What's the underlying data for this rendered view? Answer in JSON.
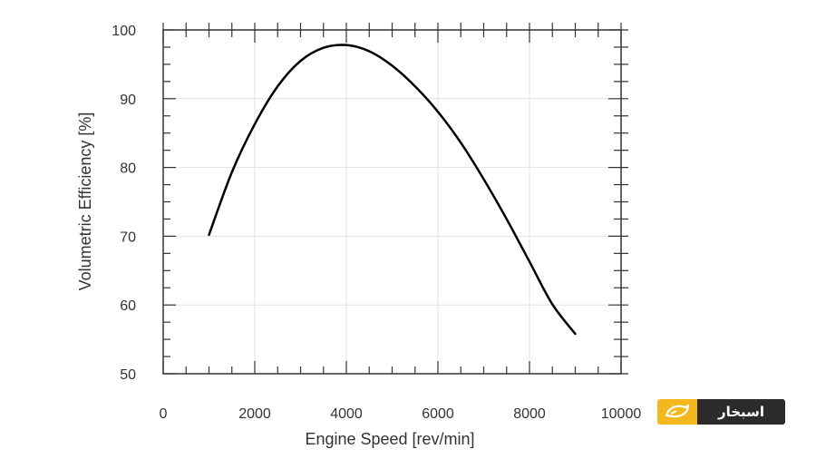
{
  "chart_data": {
    "type": "line",
    "title": "",
    "xlabel": "Engine Speed [rev/min]",
    "ylabel": "Volumetric Efficiency [%]",
    "xlim": [
      0,
      10000
    ],
    "ylim": [
      50,
      100
    ],
    "x_ticks": [
      "0",
      "2000",
      "4000",
      "6000",
      "8000",
      "10000"
    ],
    "y_ticks": [
      "50",
      "60",
      "70",
      "80",
      "90",
      "100"
    ],
    "grid": true,
    "legend": "none",
    "line_color": "#000000",
    "series": [
      {
        "x": [
          1000,
          1500,
          2000,
          2500,
          3000,
          3500,
          4000,
          4500,
          5000,
          5500,
          6000,
          6500,
          7000,
          7500,
          8000,
          8500,
          9000
        ],
        "values": [
          70.2,
          79.3,
          86.3,
          91.8,
          95.5,
          97.4,
          97.8,
          96.9,
          94.8,
          91.8,
          88.1,
          83.6,
          78.3,
          72.5,
          66.3,
          60.1,
          55.8
        ]
      }
    ]
  },
  "watermark": {
    "text": "اسبخار",
    "mark_color": "#f2b81e",
    "text_bg": "#2b2b2b"
  }
}
